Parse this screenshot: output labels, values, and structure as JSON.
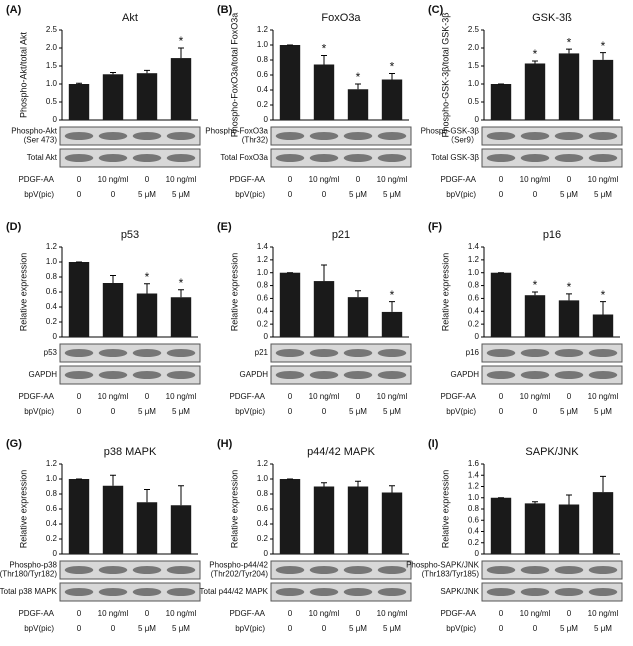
{
  "chart_data": [
    {
      "type": "bar",
      "panel": "(A)",
      "title": "Akt",
      "ylabel": "Phospho-Akt/total Akt",
      "categories": [
        null,
        null,
        null,
        null
      ],
      "values": [
        1.0,
        1.27,
        1.3,
        1.72
      ],
      "errors": [
        0.02,
        0.05,
        0.08,
        0.28
      ],
      "annotations": [
        null,
        null,
        null,
        "*"
      ],
      "color": "#1a1a1a",
      "ylim": [
        0,
        2.5
      ],
      "yticks": [
        0,
        0.5,
        {
          "value": 1,
          "label": "1.0"
        },
        1.5,
        {
          "value": 2,
          "label": "2.0"
        },
        2.5
      ],
      "blots": [
        {
          "label": [
            "Phospho-Akt",
            "(Ser 473)"
          ]
        },
        {
          "label": [
            "Total Akt"
          ]
        }
      ],
      "conditions": [
        {
          "name": "PDGF-AA",
          "values": [
            "0",
            "10 ng/ml",
            "0",
            "10 ng/ml"
          ]
        },
        {
          "name": "bpV(pic)",
          "values": [
            "0",
            "0",
            "5 μM",
            "5 μM"
          ]
        }
      ]
    },
    {
      "type": "bar",
      "panel": "(B)",
      "title": "FoxO3a",
      "ylabel": "Phospho-FoxO3a/total FoxO3a",
      "categories": [
        null,
        null,
        null,
        null
      ],
      "values": [
        1.0,
        0.74,
        0.41,
        0.54
      ],
      "errors": [
        0,
        0.12,
        0.07,
        0.08
      ],
      "annotations": [
        null,
        "*",
        "*",
        "*"
      ],
      "color": "#1a1a1a",
      "ylim": [
        0,
        1.2
      ],
      "yticks": [
        0,
        0.2,
        0.4,
        0.6,
        0.8,
        {
          "value": 1,
          "label": "1.0"
        },
        1.2
      ],
      "blots": [
        {
          "label": [
            "Phospho-FoxO3a",
            "(Thr32)"
          ]
        },
        {
          "label": [
            "Total FoxO3a"
          ]
        }
      ],
      "conditions": [
        {
          "name": "PDGF-AA",
          "values": [
            "0",
            "10 ng/ml",
            "0",
            "10 ng/ml"
          ]
        },
        {
          "name": "bpV(pic)",
          "values": [
            "0",
            "0",
            "5 μM",
            "5 μM"
          ]
        }
      ]
    },
    {
      "type": "bar",
      "panel": "(C)",
      "title": "GSK-3ß",
      "ylabel": "Phospho-GSK-3β/total GSK-3β",
      "categories": [
        null,
        null,
        null,
        null
      ],
      "values": [
        1.0,
        1.57,
        1.85,
        1.67
      ],
      "errors": [
        0,
        0.07,
        0.12,
        0.2
      ],
      "annotations": [
        null,
        "*",
        "*",
        "*"
      ],
      "color": "#1a1a1a",
      "ylim": [
        0,
        2.5
      ],
      "yticks": [
        0,
        0.5,
        {
          "value": 1,
          "label": "1.0"
        },
        1.5,
        {
          "value": 2,
          "label": "2.0"
        },
        2.5
      ],
      "blots": [
        {
          "label": [
            "Phosph-GSK-3β",
            "（Ser9）"
          ]
        },
        {
          "label": [
            "Total GSK-3β"
          ]
        }
      ],
      "conditions": [
        {
          "name": "PDGF-AA",
          "values": [
            "0",
            "10 ng/ml",
            "0",
            "10 ng/ml"
          ]
        },
        {
          "name": "bpV(pic)",
          "values": [
            "0",
            "0",
            "5 μM",
            "5 μM"
          ]
        }
      ]
    },
    {
      "type": "bar",
      "panel": "(D)",
      "title": "p53",
      "ylabel": "Relative expression",
      "categories": [
        null,
        null,
        null,
        null
      ],
      "values": [
        1.0,
        0.72,
        0.58,
        0.53
      ],
      "errors": [
        0,
        0.1,
        0.13,
        0.1
      ],
      "annotations": [
        null,
        null,
        "*",
        "*"
      ],
      "color": "#1a1a1a",
      "ylim": [
        0,
        1.2
      ],
      "yticks": [
        0,
        0.2,
        0.4,
        0.6,
        0.8,
        {
          "value": 1,
          "label": "1.0"
        },
        1.2
      ],
      "blots": [
        {
          "label": [
            "p53"
          ]
        },
        {
          "label": [
            "GAPDH"
          ]
        }
      ],
      "conditions": [
        {
          "name": "PDGF-AA",
          "values": [
            "0",
            "10 ng/ml",
            "0",
            "10 ng/ml"
          ]
        },
        {
          "name": "bpV(pic)",
          "values": [
            "0",
            "0",
            "5 μM",
            "5 μM"
          ]
        }
      ]
    },
    {
      "type": "bar",
      "panel": "(E)",
      "title": "p21",
      "ylabel": "Relative expression",
      "categories": [
        null,
        null,
        null,
        null
      ],
      "values": [
        1.0,
        0.87,
        0.62,
        0.39
      ],
      "errors": [
        0,
        0.25,
        0.1,
        0.16
      ],
      "annotations": [
        null,
        null,
        null,
        "*"
      ],
      "color": "#1a1a1a",
      "ylim": [
        0,
        1.4
      ],
      "yticks": [
        0,
        0.2,
        0.4,
        0.6,
        0.8,
        {
          "value": 1,
          "label": "1.0"
        },
        1.2,
        1.4
      ],
      "blots": [
        {
          "label": [
            "p21"
          ]
        },
        {
          "label": [
            "GAPDH"
          ]
        }
      ],
      "conditions": [
        {
          "name": "PDGF-AA",
          "values": [
            "0",
            "10 ng/ml",
            "0",
            "10 ng/ml"
          ]
        },
        {
          "name": "bpV(pic)",
          "values": [
            "0",
            "0",
            "5 μM",
            "5 μM"
          ]
        }
      ]
    },
    {
      "type": "bar",
      "panel": "(F)",
      "title": "p16",
      "ylabel": "Relative expression",
      "categories": [
        null,
        null,
        null,
        null
      ],
      "values": [
        1.0,
        0.65,
        0.57,
        0.35
      ],
      "errors": [
        0,
        0.05,
        0.1,
        0.2
      ],
      "annotations": [
        null,
        "*",
        "*",
        "*"
      ],
      "color": "#1a1a1a",
      "ylim": [
        0,
        1.4
      ],
      "yticks": [
        0,
        0.2,
        0.4,
        0.6,
        0.8,
        {
          "value": 1,
          "label": "1.0"
        },
        1.2,
        1.4
      ],
      "blots": [
        {
          "label": [
            "p16"
          ]
        },
        {
          "label": [
            "GAPDH"
          ]
        }
      ],
      "conditions": [
        {
          "name": "PDGF-AA",
          "values": [
            "0",
            "10 ng/ml",
            "0",
            "10 ng/ml"
          ]
        },
        {
          "name": "bpV(pic)",
          "values": [
            "0",
            "0",
            "5 μM",
            "5 μM"
          ]
        }
      ]
    },
    {
      "type": "bar",
      "panel": "(G)",
      "title": "p38 MAPK",
      "ylabel": "Relative expression",
      "categories": [
        null,
        null,
        null,
        null
      ],
      "values": [
        1.0,
        0.91,
        0.69,
        0.65
      ],
      "errors": [
        0,
        0.14,
        0.17,
        0.26
      ],
      "annotations": [
        null,
        null,
        null,
        null
      ],
      "color": "#1a1a1a",
      "ylim": [
        0,
        1.2
      ],
      "yticks": [
        0,
        0.2,
        0.4,
        0.6,
        0.8,
        {
          "value": 1,
          "label": "1.0"
        },
        1.2
      ],
      "blots": [
        {
          "label": [
            "Phospho-p38",
            "(Thr180/Tyr182)"
          ]
        },
        {
          "label": [
            "Total p38 MAPK"
          ]
        }
      ],
      "conditions": [
        {
          "name": "PDGF-AA",
          "values": [
            "0",
            "10 ng/ml",
            "0",
            "10 ng/ml"
          ]
        },
        {
          "name": "bpV(pic)",
          "values": [
            "0",
            "0",
            "5 μM",
            "5 μM"
          ]
        }
      ]
    },
    {
      "type": "bar",
      "panel": "(H)",
      "title": "p44/42 MAPK",
      "ylabel": "Relative expression",
      "categories": [
        null,
        null,
        null,
        null
      ],
      "values": [
        1.0,
        0.9,
        0.9,
        0.82
      ],
      "errors": [
        0,
        0.05,
        0.07,
        0.09
      ],
      "annotations": [
        null,
        null,
        null,
        null
      ],
      "color": "#1a1a1a",
      "ylim": [
        0,
        1.2
      ],
      "yticks": [
        0,
        0.2,
        0.4,
        0.6,
        0.8,
        {
          "value": 1,
          "label": "1.0"
        },
        1.2
      ],
      "blots": [
        {
          "label": [
            "Phospho-p44/42",
            "(Thr202/Tyr204)"
          ]
        },
        {
          "label": [
            "Total p44/42 MAPK"
          ]
        }
      ],
      "conditions": [
        {
          "name": "PDGF-AA",
          "values": [
            "0",
            "10 ng/ml",
            "0",
            "10 ng/ml"
          ]
        },
        {
          "name": "bpV(pic)",
          "values": [
            "0",
            "0",
            "5 μM",
            "5 μM"
          ]
        }
      ]
    },
    {
      "type": "bar",
      "panel": "(I)",
      "title": "SAPK/JNK",
      "ylabel": "Relative expression",
      "categories": [
        null,
        null,
        null,
        null
      ],
      "values": [
        1.0,
        0.9,
        0.88,
        1.1
      ],
      "errors": [
        0,
        0.03,
        0.17,
        0.28
      ],
      "annotations": [
        null,
        null,
        null,
        null
      ],
      "color": "#1a1a1a",
      "ylim": [
        0,
        1.6
      ],
      "yticks": [
        0,
        0.2,
        0.4,
        0.6,
        0.8,
        {
          "value": 1,
          "label": "1.0"
        },
        1.2,
        1.4,
        1.6
      ],
      "blots": [
        {
          "label": [
            "Phospho-SAPK/JNK",
            "(Thr183/Tyr185)"
          ]
        },
        {
          "label": [
            "SAPK/JNK"
          ]
        }
      ],
      "conditions": [
        {
          "name": "PDGF-AA",
          "values": [
            "0",
            "10 ng/ml",
            "0",
            "10 ng/ml"
          ]
        },
        {
          "name": "bpV(pic)",
          "values": [
            "0",
            "0",
            "5 μM",
            "5 μM"
          ]
        }
      ]
    }
  ]
}
